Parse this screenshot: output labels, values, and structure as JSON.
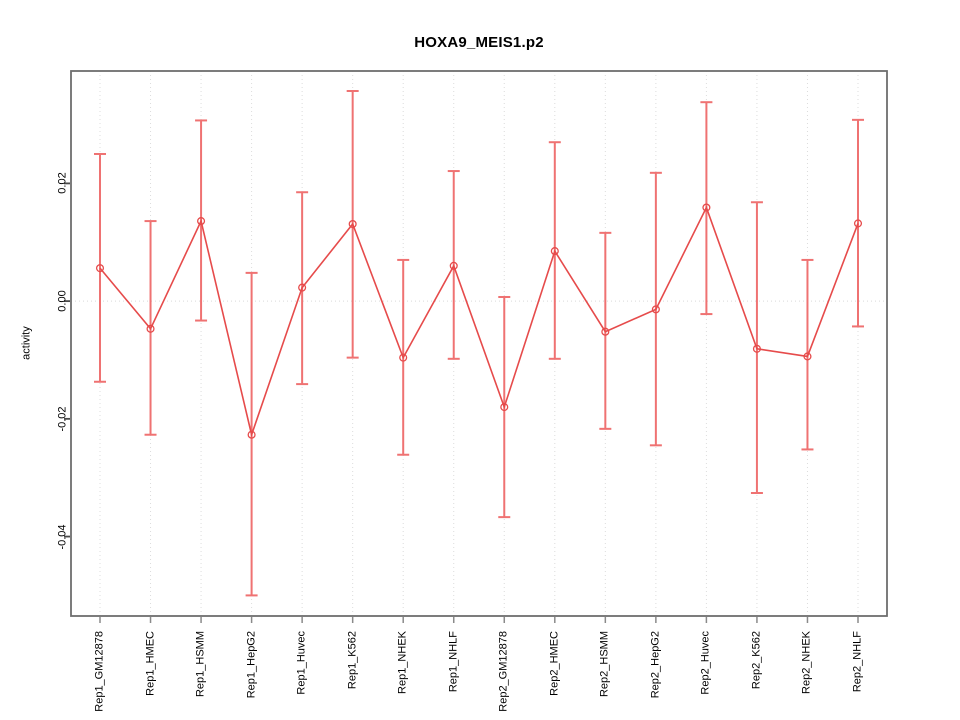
{
  "title": "HOXA9_MEIS1.p2",
  "colors": {
    "background": "#ffffff",
    "box": "#6e6e6e",
    "tick_y": "#4a4a4a",
    "tick_x": "#8a8a8a",
    "grid": "#dcdcdc",
    "zero_line": "#d9d9d9",
    "line": "#e64b4b",
    "error_bar": "#ef7272",
    "text": "#000000"
  },
  "chart_data": {
    "type": "line",
    "title": "HOXA9_MEIS1.p2",
    "xlabel": "",
    "ylabel": "activity",
    "categories": [
      "Rep1_GM12878",
      "Rep1_HMEC",
      "Rep1_HSMM",
      "Rep1_HepG2",
      "Rep1_Huvec",
      "Rep1_K562",
      "Rep1_NHEK",
      "Rep1_NHLF",
      "Rep2_GM12878",
      "Rep2_HMEC",
      "Rep2_HSMM",
      "Rep2_HepG2",
      "Rep2_Huvec",
      "Rep2_K562",
      "Rep2_NHEK",
      "Rep2_NHLF"
    ],
    "series": [
      {
        "name": "activity",
        "values": [
          0.0056,
          -0.0047,
          0.0136,
          -0.0227,
          0.0023,
          0.0131,
          -0.0096,
          0.006,
          -0.018,
          0.0085,
          -0.0052,
          -0.0014,
          0.0159,
          -0.0081,
          -0.0094,
          0.0132
        ],
        "lower": [
          -0.0137,
          -0.0227,
          -0.0033,
          -0.05,
          -0.0141,
          -0.0096,
          -0.0261,
          -0.0098,
          -0.0367,
          -0.0098,
          -0.0217,
          -0.0245,
          -0.0022,
          -0.0326,
          -0.0252,
          -0.0043
        ],
        "upper": [
          0.025,
          0.0136,
          0.0307,
          0.0048,
          0.0185,
          0.0357,
          0.007,
          0.0221,
          0.0007,
          0.027,
          0.0116,
          0.0218,
          0.0338,
          0.0168,
          0.007,
          0.0308
        ]
      }
    ],
    "yticks": [
      0.02,
      0.0,
      -0.02,
      -0.04
    ],
    "ytick_labels": [
      "0.02",
      "0.00",
      "-0.02",
      "-0.04"
    ],
    "ylim": [
      -0.0535,
      0.0391
    ],
    "grid": "vertical-dashed",
    "zero_line": true,
    "marker": "open-circle",
    "legend": "none"
  }
}
